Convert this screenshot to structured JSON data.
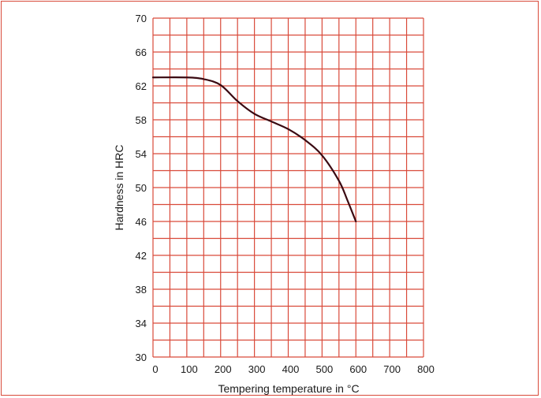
{
  "chart_data": {
    "type": "line",
    "title": "",
    "xlabel": "Tempering temperature in °C",
    "ylabel": "Hardness in HRC",
    "xlim": [
      0,
      800
    ],
    "ylim": [
      30,
      70
    ],
    "xticks": [
      0,
      100,
      200,
      300,
      400,
      500,
      600,
      700,
      800
    ],
    "xtick_labels": [
      "0",
      "100",
      "200",
      "300",
      "400",
      "500",
      "600",
      "700",
      "800"
    ],
    "yticks": [
      30,
      34,
      38,
      42,
      46,
      50,
      54,
      58,
      62,
      66,
      70
    ],
    "ytick_labels": [
      "30",
      "34",
      "38",
      "42",
      "46",
      "50",
      "54",
      "58",
      "62",
      "66",
      "70"
    ],
    "grid": true,
    "colors": {
      "grid": "#d94a3a",
      "line": "#3a0a12",
      "frame": "#d94a3a"
    },
    "series": [
      {
        "x": [
          0,
          100,
          150,
          200,
          250,
          300,
          350,
          400,
          450,
          500,
          550,
          575,
          600
        ],
        "values": [
          63,
          63,
          62.8,
          62.1,
          60.2,
          58.7,
          57.8,
          56.9,
          55.6,
          53.8,
          50.8,
          48.5,
          46
        ]
      }
    ]
  }
}
